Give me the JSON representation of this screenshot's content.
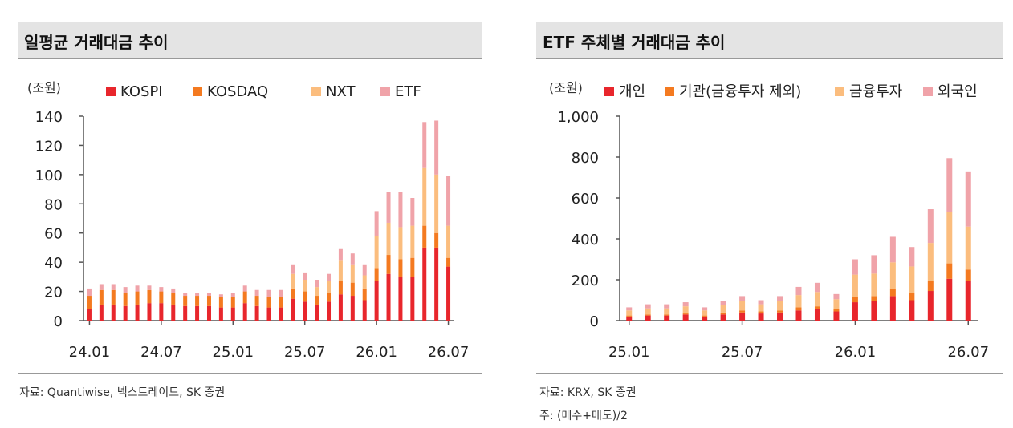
{
  "left_panel": {
    "title": "일평균 거래대금 추이",
    "source": "자료: Quantiwise, 넥스트레이드, SK 증권"
  },
  "right_panel": {
    "title": "ETF 주체별 거래대금 추이",
    "source": "자료: KRX, SK 증권",
    "note": "주: (매수+매도)/2"
  },
  "colors": {
    "c1": "#e8262c",
    "c2": "#f47a20",
    "c3": "#fbbd7e",
    "c4": "#f0a3a9",
    "axis": "#555555"
  },
  "chart_data": [
    {
      "type": "bar",
      "stacked": true,
      "unit_label": "(조원)",
      "ylim": [
        0,
        140
      ],
      "yticks": [
        0,
        20,
        40,
        60,
        80,
        100,
        120,
        140
      ],
      "ytick_labels": [
        "0",
        "20",
        "40",
        "60",
        "80",
        "100",
        "120",
        "140"
      ],
      "xtick_labels": [
        "24.01",
        "24.07",
        "25.01",
        "25.07",
        "26.01",
        "26.07"
      ],
      "xtick_index": [
        0,
        6,
        12,
        18,
        24,
        30
      ],
      "categories": [
        "24.01",
        "24.02",
        "24.03",
        "24.04",
        "24.05",
        "24.06",
        "24.07",
        "24.08",
        "24.09",
        "24.10",
        "24.11",
        "24.12",
        "25.01",
        "25.02",
        "25.03",
        "25.04",
        "25.05",
        "25.06",
        "25.07",
        "25.08",
        "25.09",
        "25.10",
        "25.11",
        "25.12",
        "26.01",
        "26.02",
        "26.03",
        "26.04",
        "26.05",
        "26.06",
        "26.07"
      ],
      "legend_position": "top",
      "series": [
        {
          "name": "KOSPI",
          "color": "#e8262c",
          "values": [
            8,
            11,
            11,
            10,
            11,
            12,
            12,
            11,
            10,
            10,
            10,
            9,
            9,
            12,
            10,
            9,
            9,
            15,
            13,
            11,
            13,
            18,
            17,
            14,
            27,
            32,
            30,
            30,
            50,
            50,
            37
          ]
        },
        {
          "name": "KOSDAQ",
          "color": "#f47a20",
          "values": [
            9,
            10,
            10,
            9,
            9,
            9,
            8,
            8,
            7,
            7,
            7,
            7,
            7,
            8,
            7,
            7,
            7,
            7,
            7,
            6,
            6,
            9,
            9,
            8,
            9,
            13,
            12,
            13,
            15,
            10,
            6
          ]
        },
        {
          "name": "NXT",
          "color": "#fbbd7e",
          "values": [
            0,
            0,
            0,
            0,
            0,
            0,
            0,
            0,
            0,
            0,
            0,
            0,
            0,
            0,
            0,
            0,
            0,
            10,
            8,
            6,
            8,
            14,
            12,
            9,
            22,
            22,
            22,
            22,
            40,
            40,
            22
          ]
        },
        {
          "name": "ETF",
          "color": "#f0a3a9",
          "values": [
            5,
            4,
            4,
            4,
            4,
            3,
            3,
            3,
            2,
            2,
            2,
            2,
            3,
            4,
            4,
            5,
            5,
            6,
            5,
            5,
            5,
            8,
            8,
            7,
            17,
            21,
            24,
            19,
            31,
            37,
            34
          ]
        }
      ]
    },
    {
      "type": "bar",
      "stacked": true,
      "unit_label": "(조원)",
      "ylim": [
        0,
        1000
      ],
      "yticks": [
        0,
        200,
        400,
        600,
        800,
        1000
      ],
      "ytick_labels": [
        "0",
        "200",
        "400",
        "600",
        "800",
        "1,000"
      ],
      "xtick_labels": [
        "25.01",
        "25.07",
        "26.01",
        "26.07"
      ],
      "xtick_index": [
        0,
        6,
        12,
        18
      ],
      "categories": [
        "25.01",
        "25.02",
        "25.03",
        "25.04",
        "25.05",
        "25.06",
        "25.07",
        "25.08",
        "25.09",
        "25.10",
        "25.11",
        "25.12",
        "26.01",
        "26.02",
        "26.03",
        "26.04",
        "26.05",
        "26.06",
        "26.07"
      ],
      "legend_position": "top",
      "series": [
        {
          "name": "개인",
          "color": "#e8262c",
          "values": [
            20,
            25,
            25,
            30,
            20,
            30,
            40,
            35,
            40,
            50,
            55,
            45,
            90,
            95,
            120,
            100,
            145,
            205,
            195
          ]
        },
        {
          "name": "기관(금융투자 제외)",
          "color": "#f47a20",
          "values": [
            5,
            5,
            5,
            5,
            5,
            10,
            10,
            10,
            10,
            15,
            15,
            10,
            25,
            25,
            35,
            35,
            50,
            75,
            55
          ]
        },
        {
          "name": "금융투자",
          "color": "#fbbd7e",
          "values": [
            25,
            30,
            30,
            35,
            25,
            35,
            45,
            35,
            45,
            60,
            70,
            50,
            110,
            110,
            130,
            130,
            185,
            250,
            210
          ]
        },
        {
          "name": "외국인",
          "color": "#f0a3a9",
          "values": [
            15,
            20,
            20,
            20,
            15,
            20,
            25,
            20,
            25,
            40,
            45,
            25,
            75,
            90,
            125,
            95,
            165,
            265,
            270
          ]
        }
      ]
    }
  ]
}
